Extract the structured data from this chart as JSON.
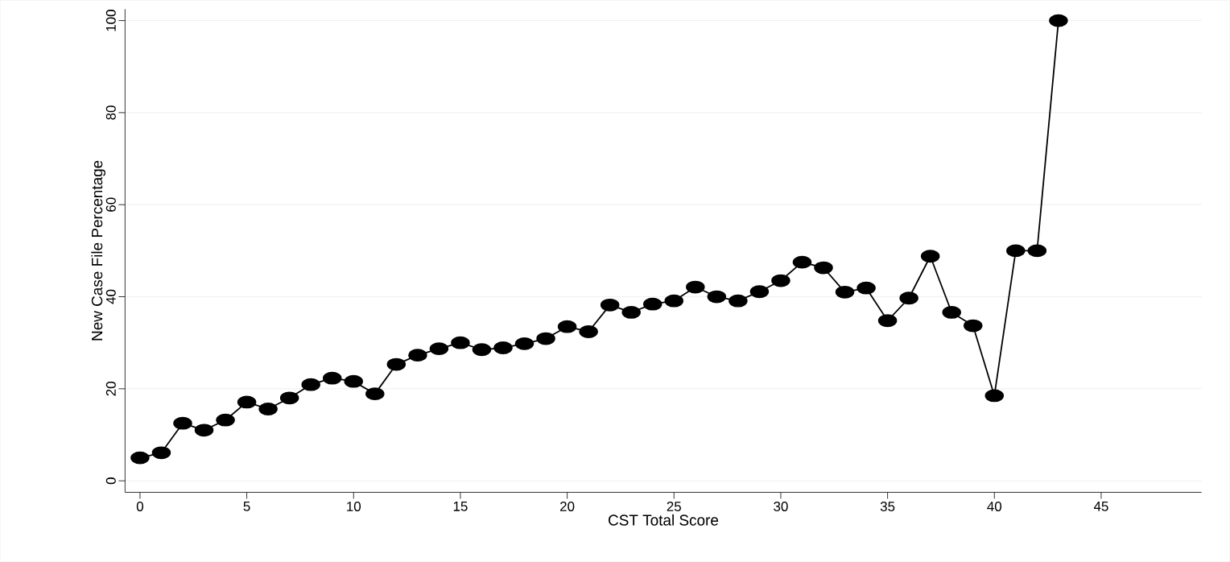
{
  "chart_data": {
    "type": "line",
    "xlabel": "CST Total Score",
    "ylabel": "New Case File Percentage",
    "x": [
      0,
      1,
      2,
      3,
      4,
      5,
      6,
      7,
      8,
      9,
      10,
      11,
      12,
      13,
      14,
      15,
      16,
      17,
      18,
      19,
      20,
      21,
      22,
      23,
      24,
      25,
      26,
      27,
      28,
      29,
      30,
      31,
      32,
      33,
      34,
      35,
      36,
      37,
      38,
      39,
      40,
      41,
      42,
      43
    ],
    "series": [
      {
        "color": "#000000",
        "values": [
          5.0,
          6.1,
          12.5,
          11.0,
          13.2,
          17.1,
          15.6,
          18.0,
          20.9,
          22.3,
          21.6,
          18.9,
          25.3,
          27.3,
          28.7,
          30.0,
          28.5,
          28.9,
          29.8,
          30.9,
          33.5,
          32.4,
          38.2,
          36.6,
          38.4,
          39.1,
          42.1,
          40.0,
          39.1,
          41.1,
          43.5,
          47.5,
          46.3,
          41.0,
          41.9,
          34.8,
          39.7,
          48.8,
          36.6,
          33.7,
          18.5,
          50.0,
          50.0,
          100.0
        ]
      }
    ],
    "xlim": [
      -0.7,
      49.7
    ],
    "ylim": [
      -2.5,
      102.5
    ],
    "xticks": [
      0,
      5,
      10,
      15,
      20,
      25,
      30,
      35,
      40,
      45
    ],
    "yticks": [
      0,
      20,
      40,
      60,
      80,
      100
    ],
    "grid": "y",
    "marker": "circle",
    "line_style": "solid"
  }
}
